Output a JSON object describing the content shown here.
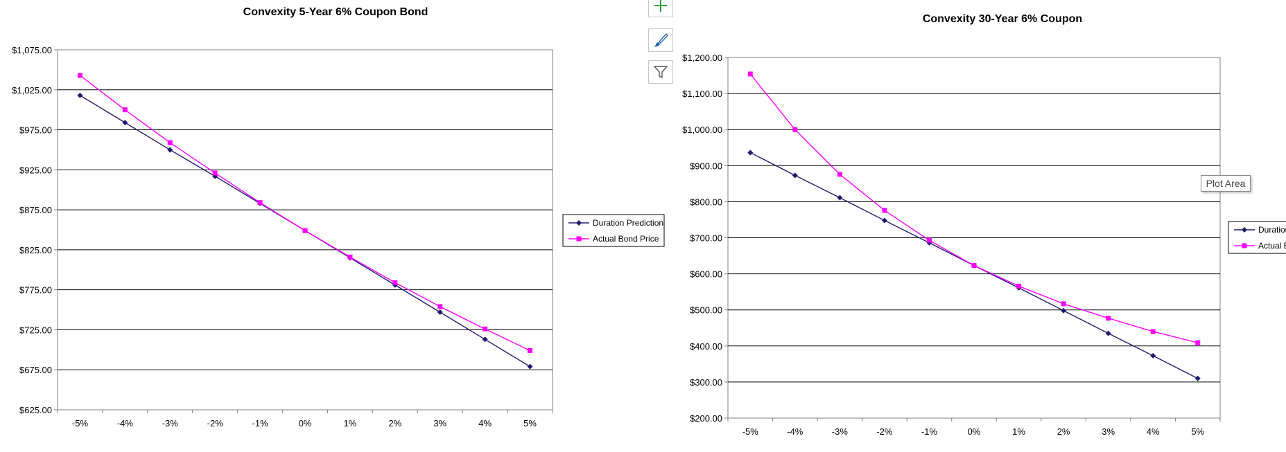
{
  "colors": {
    "duration": "#1f1a6e",
    "actual": "#ff00ff",
    "grid": "#000000",
    "frame": "#808080"
  },
  "toolbar": {
    "icons": [
      "plus-icon",
      "brush-icon",
      "filter-icon"
    ]
  },
  "tooltip": {
    "text": "Plot Area"
  },
  "chart_data": [
    {
      "type": "line",
      "title": "Convexity 5-Year 6% Coupon Bond",
      "xlabel": "",
      "ylabel": "",
      "categories": [
        "-5%",
        "-4%",
        "-3%",
        "-2%",
        "-1%",
        "0%",
        "1%",
        "2%",
        "3%",
        "4%",
        "5%"
      ],
      "ylim": [
        625,
        1075
      ],
      "yticks": [
        "$1,075.00",
        "$1,025.00",
        "$975.00",
        "$925.00",
        "$875.00",
        "$825.00",
        "$775.00",
        "$725.00",
        "$675.00",
        "$625.00"
      ],
      "ytick_values": [
        1075,
        1025,
        975,
        925,
        875,
        825,
        775,
        725,
        675,
        625
      ],
      "grid": true,
      "legend": "right",
      "series": [
        {
          "name": "Duration Prediction",
          "marker": "diamond",
          "values": [
            1018,
            984,
            950,
            917,
            883,
            849,
            815,
            781,
            747,
            713,
            679
          ]
        },
        {
          "name": "Actual Bond Price",
          "marker": "square",
          "values": [
            1043,
            1000,
            959,
            921,
            884,
            849,
            816,
            784,
            754,
            726,
            699
          ]
        }
      ]
    },
    {
      "type": "line",
      "title": "Convexity 30-Year 6% Coupon",
      "xlabel": "",
      "ylabel": "",
      "categories": [
        "-5%",
        "-4%",
        "-3%",
        "-2%",
        "-1%",
        "0%",
        "1%",
        "2%",
        "3%",
        "4%",
        "5%"
      ],
      "ylim": [
        200,
        1200
      ],
      "yticks": [
        "$1,200.00",
        "$1,100.00",
        "$1,000.00",
        "$900.00",
        "$800.00",
        "$700.00",
        "$600.00",
        "$500.00",
        "$400.00",
        "$300.00",
        "$200.00"
      ],
      "ytick_values": [
        1200,
        1100,
        1000,
        900,
        800,
        700,
        600,
        500,
        400,
        300,
        200
      ],
      "grid": true,
      "legend": "right",
      "series": [
        {
          "name": "Duration Prediction",
          "marker": "diamond",
          "values": [
            936,
            873,
            811,
            748,
            686,
            623,
            561,
            498,
            435,
            373,
            310
          ]
        },
        {
          "name": "Actual Bond Price",
          "marker": "square",
          "values": [
            1154,
            1000,
            876,
            776,
            693,
            623,
            566,
            517,
            477,
            440,
            409
          ]
        }
      ]
    }
  ]
}
